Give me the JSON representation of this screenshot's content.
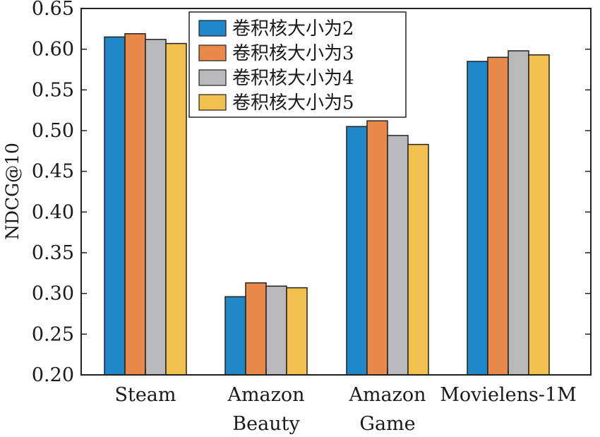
{
  "chart_data": {
    "type": "bar",
    "ylabel": "NDCG@10",
    "ylim": [
      0.2,
      0.65
    ],
    "yticks": [
      "0.20",
      "0.25",
      "0.30",
      "0.35",
      "0.40",
      "0.45",
      "0.50",
      "0.55",
      "0.60",
      "0.65"
    ],
    "categories": [
      [
        "Steam"
      ],
      [
        "Amazon",
        "Beauty"
      ],
      [
        "Amazon",
        "Game"
      ],
      [
        "Movielens-1M"
      ]
    ],
    "series": [
      {
        "name": "卷积核大小为2",
        "color": "#1f87c8",
        "values": [
          0.615,
          0.296,
          0.505,
          0.585
        ]
      },
      {
        "name": "卷积核大小为3",
        "color": "#e8894a",
        "values": [
          0.619,
          0.313,
          0.512,
          0.59
        ]
      },
      {
        "name": "卷积核大小为4",
        "color": "#b9b9bc",
        "values": [
          0.612,
          0.309,
          0.494,
          0.598
        ]
      },
      {
        "name": "卷积核大小为5",
        "color": "#f2c04e",
        "values": [
          0.607,
          0.307,
          0.483,
          0.593
        ]
      }
    ],
    "legend_position": "top-center",
    "grid": false
  }
}
